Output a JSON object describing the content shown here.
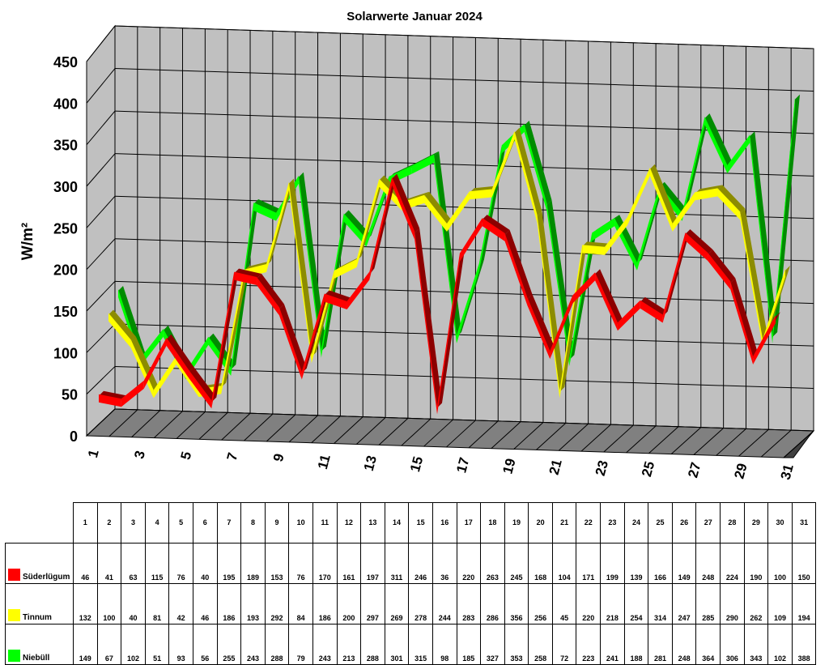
{
  "chart_data": {
    "type": "line",
    "title": "Solarwerte Januar 2024",
    "ylabel": "W/m²",
    "xlabel": "",
    "ylim": [
      0,
      450
    ],
    "yticks": [
      0,
      50,
      100,
      150,
      200,
      250,
      300,
      350,
      400,
      450
    ],
    "xtick_labels": [
      "1",
      "3",
      "5",
      "7",
      "9",
      "11",
      "13",
      "15",
      "17",
      "19",
      "21",
      "23",
      "25",
      "27",
      "29",
      "31"
    ],
    "categories": [
      "1",
      "2",
      "3",
      "4",
      "5",
      "6",
      "7",
      "8",
      "9",
      "10",
      "11",
      "12",
      "13",
      "14",
      "15",
      "16",
      "17",
      "18",
      "19",
      "20",
      "21",
      "22",
      "23",
      "24",
      "25",
      "26",
      "27",
      "28",
      "29",
      "30",
      "31"
    ],
    "grid": true,
    "style": "3d-ribbon",
    "series": [
      {
        "name": "Süderlügum",
        "color": "#ff0000",
        "values": [
          46,
          41,
          63,
          115,
          76,
          40,
          195,
          189,
          153,
          76,
          170,
          161,
          197,
          311,
          246,
          36,
          220,
          263,
          245,
          168,
          104,
          171,
          199,
          139,
          166,
          149,
          248,
          224,
          190,
          100,
          150
        ]
      },
      {
        "name": "Tinnum",
        "color": "#ffff00",
        "values": [
          132,
          100,
          40,
          81,
          42,
          46,
          186,
          193,
          292,
          84,
          186,
          200,
          297,
          269,
          278,
          244,
          283,
          286,
          356,
          256,
          45,
          220,
          218,
          254,
          314,
          247,
          285,
          290,
          262,
          109,
          194
        ]
      },
      {
        "name": "Niebüll",
        "color": "#00ff00",
        "values": [
          149,
          67,
          102,
          51,
          93,
          56,
          255,
          243,
          288,
          79,
          243,
          213,
          288,
          301,
          315,
          98,
          185,
          327,
          353,
          258,
          72,
          223,
          241,
          188,
          281,
          248,
          364,
          306,
          343,
          102,
          388
        ]
      }
    ]
  }
}
